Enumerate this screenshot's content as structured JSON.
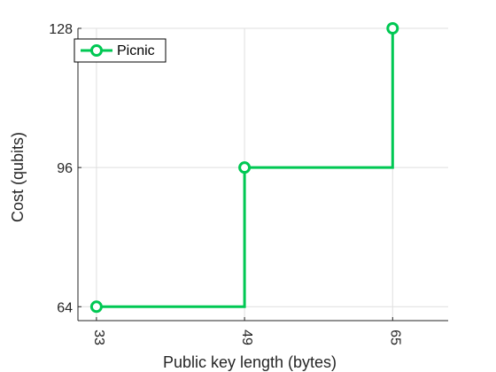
{
  "chart_data": {
    "type": "line",
    "step": true,
    "x": [
      33,
      49,
      65
    ],
    "series": [
      {
        "name": "Picnic",
        "values": [
          64,
          96,
          128
        ],
        "color": "#00c853"
      }
    ],
    "xlabel": "Public key length (bytes)",
    "ylabel": "Cost (qubits)",
    "xticks": [
      33,
      49,
      65
    ],
    "yticks": [
      64,
      96,
      128
    ],
    "xlim": [
      31,
      71
    ],
    "ylim": [
      60.8,
      128
    ],
    "grid": true,
    "legend": "top-left"
  }
}
